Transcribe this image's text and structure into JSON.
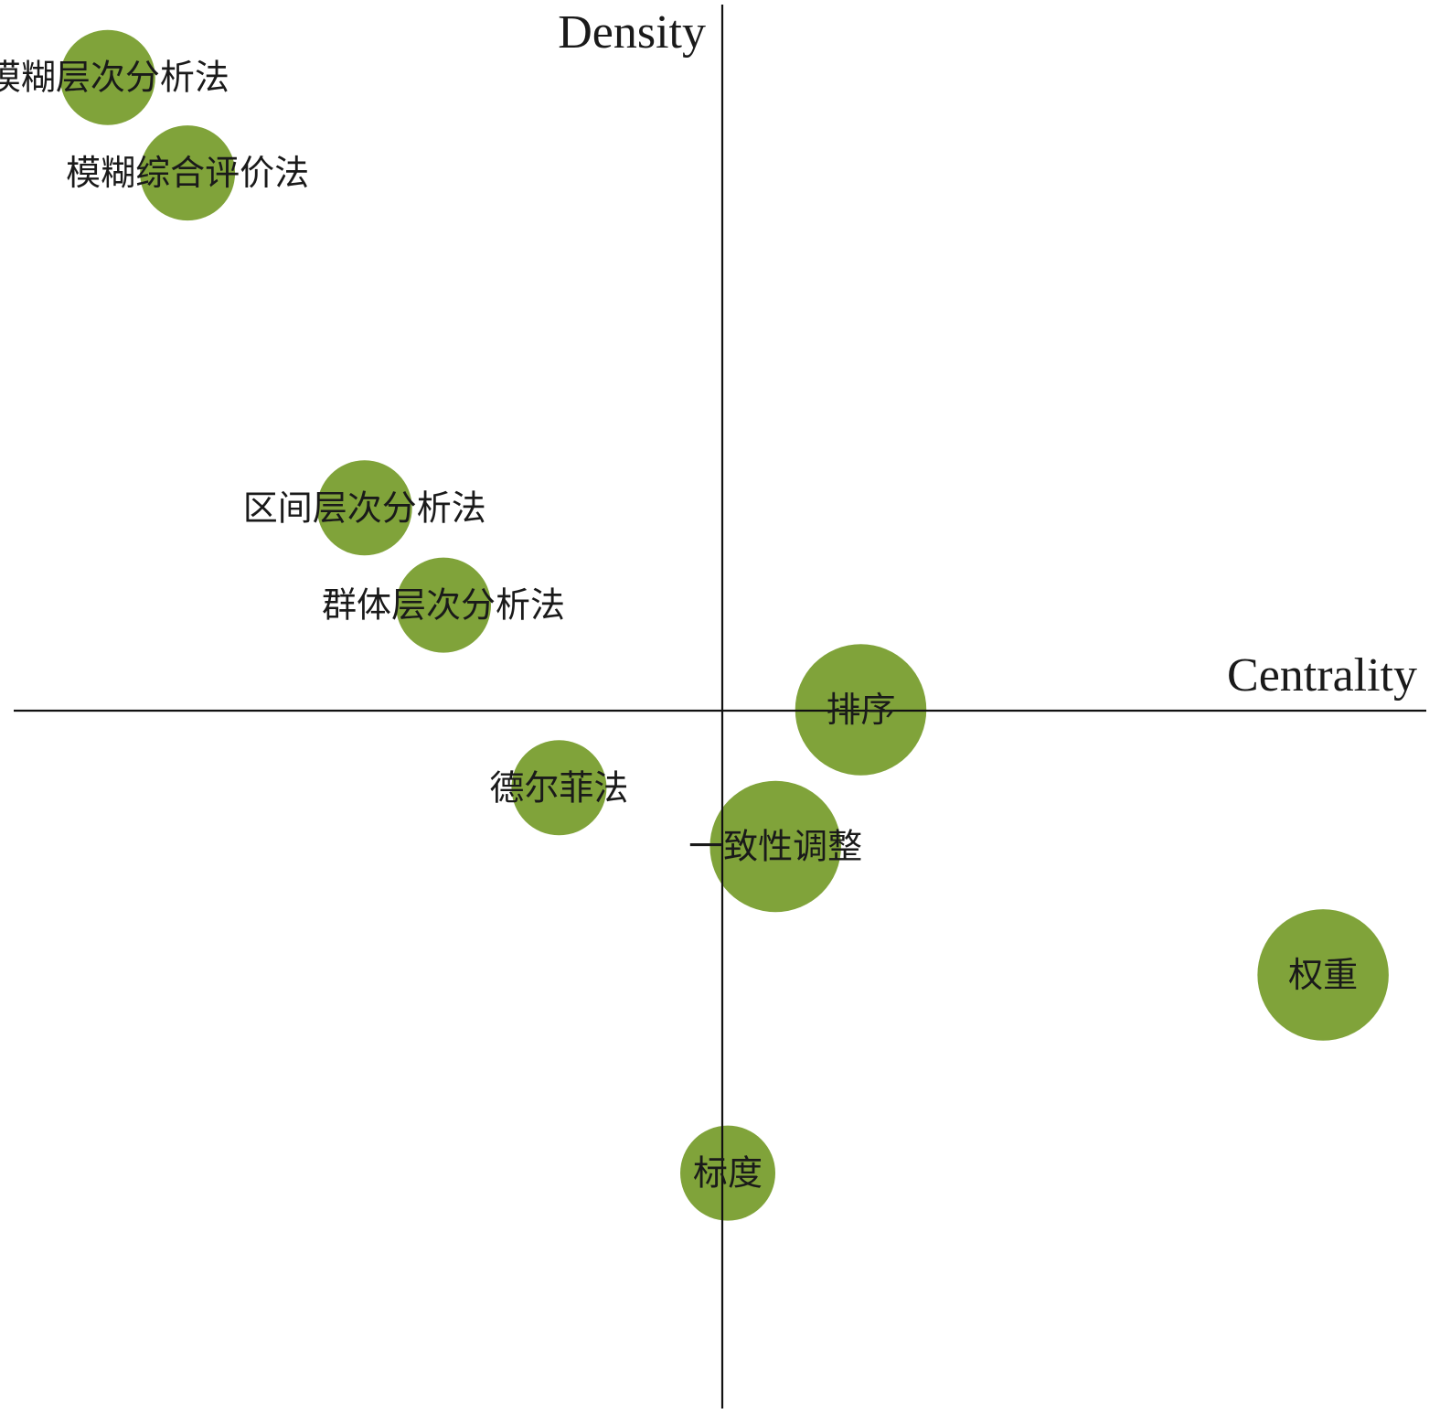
{
  "chart_data": {
    "type": "scatter",
    "title": "",
    "xlabel": "Centrality",
    "ylabel": "Density",
    "xlim": [
      -7.7,
      7.7
    ],
    "ylim": [
      -7.65,
      7.65
    ],
    "grid": false,
    "legend": "none",
    "bubble_color": "#80a33a",
    "points": [
      {
        "label": "模糊层次分析法",
        "x": -6.7,
        "y": 6.9,
        "size": 1.0
      },
      {
        "label": "模糊综合评价法",
        "x": -5.83,
        "y": 5.86,
        "size": 1.0
      },
      {
        "label": "区间层次分析法",
        "x": -3.9,
        "y": 2.21,
        "size": 1.0
      },
      {
        "label": "群体层次分析法",
        "x": -3.04,
        "y": 1.15,
        "size": 1.0
      },
      {
        "label": "排序",
        "x": 1.51,
        "y": 0.01,
        "size": 1.38
      },
      {
        "label": "德尔菲法",
        "x": -1.78,
        "y": -0.84,
        "size": 1.0
      },
      {
        "label": "一致性调整",
        "x": 0.58,
        "y": -1.48,
        "size": 1.38
      },
      {
        "label": "权重",
        "x": 6.55,
        "y": -2.88,
        "size": 1.38
      },
      {
        "label": "标度",
        "x": 0.06,
        "y": -5.04,
        "size": 1.0
      }
    ]
  }
}
